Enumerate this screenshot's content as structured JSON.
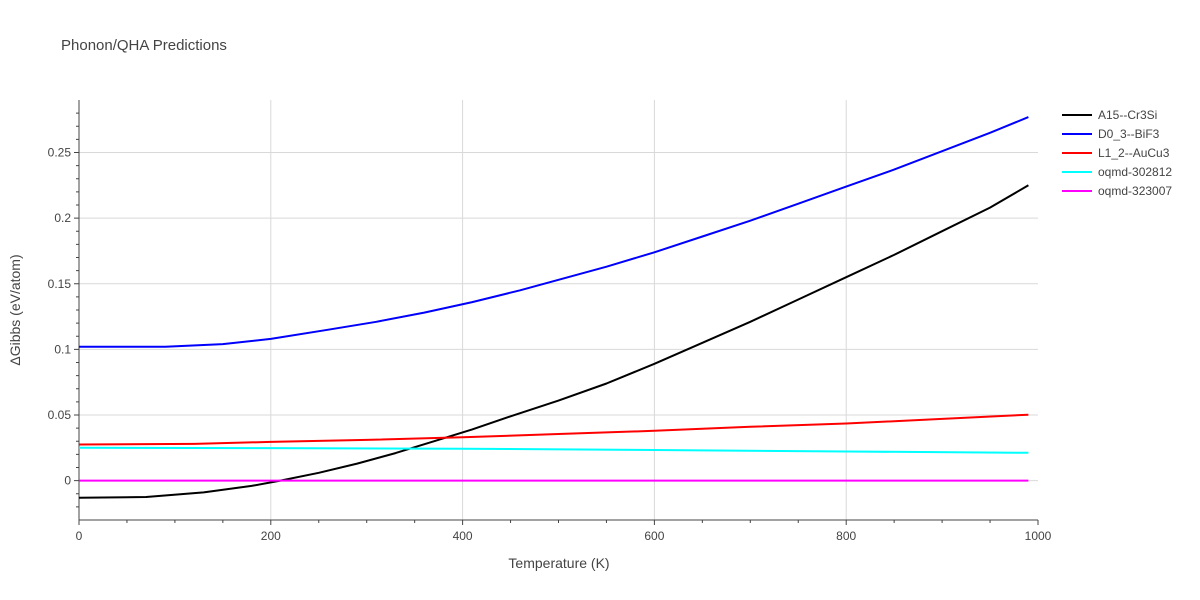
{
  "chart_data": {
    "type": "line",
    "title": "Phonon/QHA Predictions",
    "xlabel": "Temperature (K)",
    "ylabel": "ΔGibbs (eV/atom)",
    "xlim": [
      0,
      1000
    ],
    "ylim": [
      -0.03,
      0.29
    ],
    "x_ticks": [
      0,
      200,
      400,
      600,
      800,
      1000
    ],
    "x_tick_labels": [
      "0",
      "200",
      "400",
      "600",
      "800",
      "1000"
    ],
    "y_ticks": [
      0,
      0.05,
      0.1,
      0.15,
      0.2,
      0.25
    ],
    "y_tick_labels": [
      "0",
      "0.05",
      "0.1",
      "0.15",
      "0.2",
      "0.25"
    ],
    "grid": true,
    "legend_position": "top-right",
    "series": [
      {
        "name": "A15--Cr3Si",
        "color": "#000000",
        "x": [
          0,
          70,
          130,
          180,
          210,
          250,
          290,
          330,
          370,
          410,
          450,
          500,
          550,
          600,
          650,
          700,
          750,
          800,
          850,
          900,
          950,
          990
        ],
        "y": [
          -0.013,
          -0.0125,
          -0.009,
          -0.004,
          0.0,
          0.006,
          0.013,
          0.021,
          0.03,
          0.039,
          0.049,
          0.061,
          0.074,
          0.089,
          0.105,
          0.121,
          0.138,
          0.155,
          0.172,
          0.19,
          0.208,
          0.225
        ]
      },
      {
        "name": "D0_3--BiF3",
        "color": "#0000ff",
        "x": [
          0,
          90,
          150,
          200,
          260,
          310,
          360,
          410,
          460,
          500,
          550,
          600,
          650,
          700,
          750,
          800,
          850,
          900,
          950,
          990
        ],
        "y": [
          0.102,
          0.102,
          0.104,
          0.108,
          0.115,
          0.121,
          0.128,
          0.136,
          0.145,
          0.153,
          0.163,
          0.174,
          0.186,
          0.198,
          0.211,
          0.224,
          0.237,
          0.251,
          0.265,
          0.277
        ]
      },
      {
        "name": "L1_2--AuCu3",
        "color": "#ff0000",
        "x": [
          0,
          120,
          200,
          300,
          400,
          500,
          600,
          700,
          800,
          900,
          990
        ],
        "y": [
          0.0275,
          0.028,
          0.0295,
          0.031,
          0.033,
          0.0355,
          0.038,
          0.041,
          0.0435,
          0.047,
          0.0502
        ]
      },
      {
        "name": "oqmd-302812",
        "color": "#00ffff",
        "x": [
          0,
          200,
          400,
          600,
          800,
          990
        ],
        "y": [
          0.025,
          0.0248,
          0.0243,
          0.0233,
          0.0222,
          0.0212
        ]
      },
      {
        "name": "oqmd-323007",
        "color": "#ff00ff",
        "x": [
          0,
          990
        ],
        "y": [
          0,
          0
        ]
      }
    ]
  }
}
